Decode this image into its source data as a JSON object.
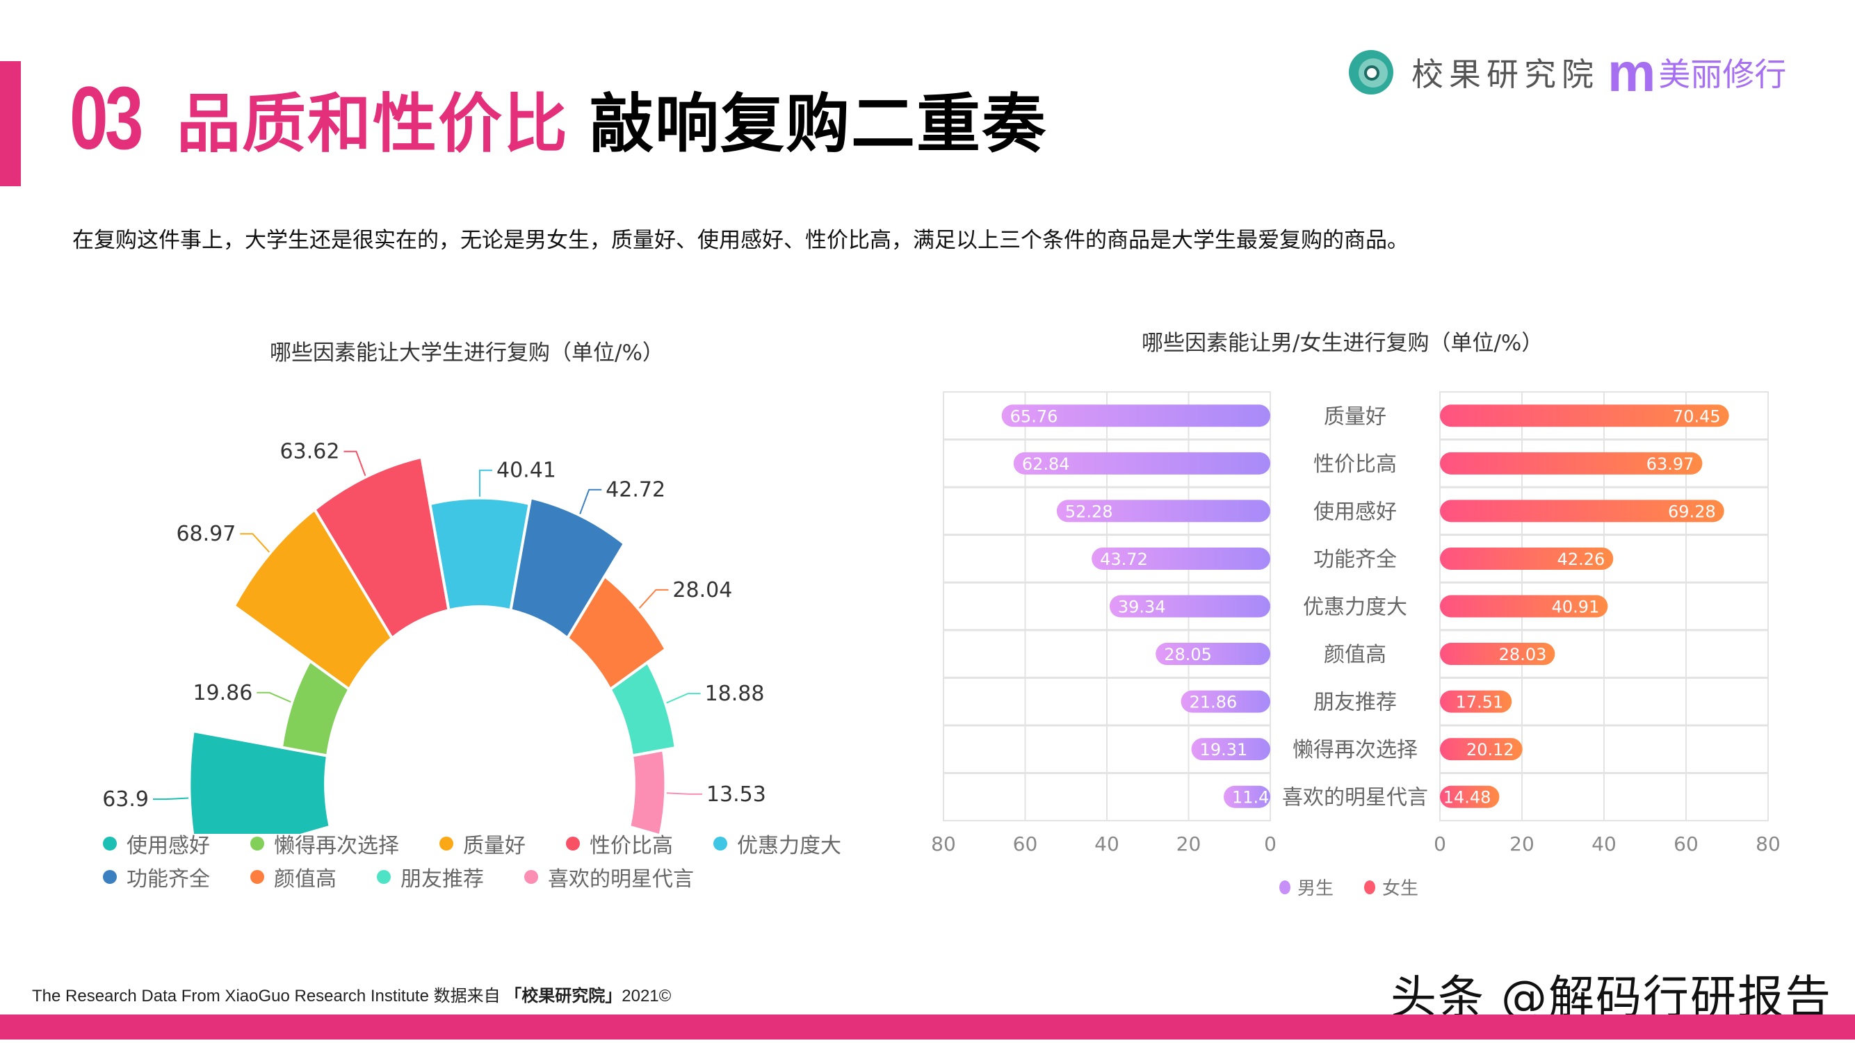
{
  "header": {
    "number": "03",
    "title_pink": "品质和性价比",
    "title_black": "敲响复购二重奏",
    "logo_name": "校果研究院",
    "logo_m": "m",
    "logo_brand": "美丽修行"
  },
  "subtitle": "在复购这件事上，大学生还是很实在的，无论是男女生，质量好、使用感好、性价比高，满足以上三个条件的商品是大学生最爱复购的商品。",
  "colors": {
    "accent": "#E4307A",
    "male_gradient": [
      "#E39BF7",
      "#A88BF8"
    ],
    "female_gradient": [
      "#FF5382",
      "#FF8C45"
    ]
  },
  "chart_data": [
    {
      "type": "pie",
      "subtype": "rose",
      "title": "哪些因素能让大学生进行复购（单位/%）",
      "categories": [
        "使用感好",
        "懒得再次选择",
        "质量好",
        "性价比高",
        "优惠力度大",
        "功能齐全",
        "颜值高",
        "朋友推荐",
        "喜欢的明星代言"
      ],
      "values": [
        63.9,
        19.86,
        68.97,
        63.62,
        40.41,
        42.72,
        28.04,
        18.88,
        13.53
      ],
      "colors": [
        "#1BBFB3",
        "#82D05A",
        "#FAA816",
        "#F85064",
        "#3FC6E5",
        "#3A80C0",
        "#FE7E40",
        "#4FE3C5",
        "#FC8DB3"
      ],
      "legend_position": "bottom"
    },
    {
      "type": "bar",
      "subtype": "butterfly-horizontal",
      "title": "哪些因素能让男/女生进行复购（单位/%）",
      "categories": [
        "质量好",
        "性价比高",
        "使用感好",
        "功能齐全",
        "优惠力度大",
        "颜值高",
        "朋友推荐",
        "懒得再次选择",
        "喜欢的明星代言"
      ],
      "series": [
        {
          "name": "男生",
          "values": [
            65.76,
            62.84,
            52.28,
            43.72,
            39.34,
            28.05,
            21.86,
            19.31,
            11.4
          ]
        },
        {
          "name": "女生",
          "values": [
            70.45,
            63.97,
            69.28,
            42.26,
            40.91,
            28.03,
            17.51,
            20.12,
            14.48
          ]
        }
      ],
      "x_ticks_left": [
        "80",
        "60",
        "40",
        "20",
        "0"
      ],
      "x_ticks_right": [
        "0",
        "20",
        "40",
        "60",
        "80"
      ],
      "xlim": [
        0,
        80
      ],
      "grid": true,
      "legend_position": "bottom"
    }
  ],
  "legend_right": [
    {
      "label": "男生",
      "color": "#C690F8"
    },
    {
      "label": "女生",
      "color": "#FF5A6E"
    }
  ],
  "footer": {
    "note_prefix": "The Research Data From XiaoGuo Research Institute 数据来自",
    "note_bold": "「校果研究院」",
    "note_suffix": "2021©",
    "toutiao": "头条 @解码行研报告"
  }
}
